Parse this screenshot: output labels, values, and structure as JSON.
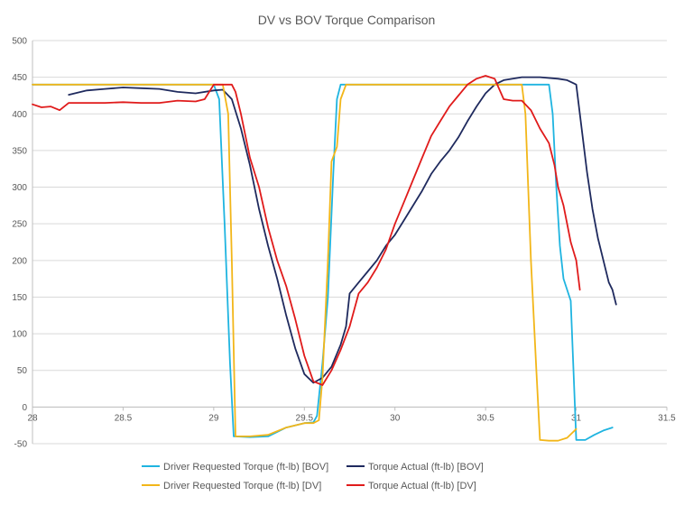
{
  "chart_data": {
    "type": "line",
    "title": "DV vs BOV Torque Comparison",
    "xlabel": "",
    "ylabel": "",
    "xlim": [
      28,
      31.5
    ],
    "ylim": [
      -50,
      500
    ],
    "x_ticks": [
      28,
      28.5,
      29,
      29.5,
      30,
      30.5,
      31,
      31.5
    ],
    "x_tick_labels": [
      "28",
      "28.5",
      "29",
      "29.5",
      "30",
      "30.5",
      "31",
      "31.5"
    ],
    "y_ticks": [
      -50,
      0,
      50,
      100,
      150,
      200,
      250,
      300,
      350,
      400,
      450,
      500
    ],
    "y_tick_labels": [
      "-50",
      "0",
      "50",
      "100",
      "150",
      "200",
      "250",
      "300",
      "350",
      "400",
      "450",
      "500"
    ],
    "grid": true,
    "legend_position": "bottom",
    "series": [
      {
        "name": "Driver Requested Torque  (ft-lb) [BOV]",
        "color": "#1fb4e0",
        "points": [
          [
            28.0,
            440
          ],
          [
            29.0,
            440
          ],
          [
            29.03,
            420
          ],
          [
            29.06,
            250
          ],
          [
            29.09,
            60
          ],
          [
            29.11,
            -40
          ],
          [
            29.2,
            -41
          ],
          [
            29.3,
            -40
          ],
          [
            29.4,
            -28
          ],
          [
            29.5,
            -22
          ],
          [
            29.55,
            -21
          ],
          [
            29.57,
            -12
          ],
          [
            29.6,
            60
          ],
          [
            29.63,
            150
          ],
          [
            29.66,
            320
          ],
          [
            29.68,
            420
          ],
          [
            29.7,
            440
          ],
          [
            29.8,
            440
          ],
          [
            30.0,
            440
          ],
          [
            30.5,
            440
          ],
          [
            30.85,
            440
          ],
          [
            30.87,
            400
          ],
          [
            30.89,
            300
          ],
          [
            30.91,
            220
          ],
          [
            30.93,
            175
          ],
          [
            30.97,
            145
          ],
          [
            31.0,
            -45
          ],
          [
            31.05,
            -45
          ],
          [
            31.1,
            -38
          ],
          [
            31.15,
            -32
          ],
          [
            31.2,
            -28
          ]
        ]
      },
      {
        "name": "Torque Actual (ft-lb) [BOV]",
        "color": "#1f2a5e",
        "points": [
          [
            28.2,
            426
          ],
          [
            28.3,
            432
          ],
          [
            28.4,
            434
          ],
          [
            28.5,
            436
          ],
          [
            28.6,
            435
          ],
          [
            28.7,
            434
          ],
          [
            28.8,
            430
          ],
          [
            28.9,
            428
          ],
          [
            29.0,
            432
          ],
          [
            29.05,
            433
          ],
          [
            29.1,
            420
          ],
          [
            29.15,
            380
          ],
          [
            29.2,
            330
          ],
          [
            29.25,
            270
          ],
          [
            29.3,
            220
          ],
          [
            29.35,
            175
          ],
          [
            29.4,
            125
          ],
          [
            29.45,
            80
          ],
          [
            29.5,
            45
          ],
          [
            29.55,
            33
          ],
          [
            29.6,
            40
          ],
          [
            29.65,
            55
          ],
          [
            29.7,
            85
          ],
          [
            29.73,
            110
          ],
          [
            29.75,
            155
          ],
          [
            29.8,
            170
          ],
          [
            29.85,
            185
          ],
          [
            29.9,
            200
          ],
          [
            29.95,
            220
          ],
          [
            30.0,
            235
          ],
          [
            30.05,
            255
          ],
          [
            30.1,
            275
          ],
          [
            30.15,
            295
          ],
          [
            30.2,
            318
          ],
          [
            30.25,
            335
          ],
          [
            30.3,
            350
          ],
          [
            30.35,
            368
          ],
          [
            30.4,
            390
          ],
          [
            30.45,
            410
          ],
          [
            30.5,
            428
          ],
          [
            30.55,
            440
          ],
          [
            30.6,
            446
          ],
          [
            30.7,
            450
          ],
          [
            30.8,
            450
          ],
          [
            30.9,
            448
          ],
          [
            30.95,
            446
          ],
          [
            31.0,
            440
          ],
          [
            31.03,
            380
          ],
          [
            31.06,
            320
          ],
          [
            31.09,
            270
          ],
          [
            31.12,
            230
          ],
          [
            31.15,
            200
          ],
          [
            31.18,
            170
          ],
          [
            31.2,
            160
          ],
          [
            31.22,
            140
          ]
        ]
      },
      {
        "name": "Driver Requested Torque  (ft-lb) [DV]",
        "color": "#f2b619",
        "points": [
          [
            28.0,
            440
          ],
          [
            29.05,
            440
          ],
          [
            29.08,
            400
          ],
          [
            29.1,
            200
          ],
          [
            29.12,
            -40
          ],
          [
            29.2,
            -40
          ],
          [
            29.3,
            -38
          ],
          [
            29.4,
            -28
          ],
          [
            29.5,
            -22
          ],
          [
            29.55,
            -22
          ],
          [
            29.58,
            -18
          ],
          [
            29.6,
            40
          ],
          [
            29.63,
            200
          ],
          [
            29.65,
            335
          ],
          [
            29.68,
            355
          ],
          [
            29.7,
            420
          ],
          [
            29.73,
            440
          ],
          [
            29.8,
            440
          ],
          [
            30.0,
            440
          ],
          [
            30.5,
            440
          ],
          [
            30.7,
            440
          ],
          [
            30.72,
            400
          ],
          [
            30.75,
            200
          ],
          [
            30.78,
            50
          ],
          [
            30.8,
            -45
          ],
          [
            30.85,
            -46
          ],
          [
            30.9,
            -46
          ],
          [
            30.95,
            -42
          ],
          [
            31.0,
            -30
          ]
        ]
      },
      {
        "name": "Torque Actual (ft-lb) [DV]",
        "color": "#e01b1b",
        "points": [
          [
            28.0,
            413
          ],
          [
            28.05,
            409
          ],
          [
            28.1,
            410
          ],
          [
            28.15,
            405
          ],
          [
            28.2,
            415
          ],
          [
            28.3,
            415
          ],
          [
            28.4,
            415
          ],
          [
            28.5,
            416
          ],
          [
            28.6,
            415
          ],
          [
            28.7,
            415
          ],
          [
            28.8,
            418
          ],
          [
            28.9,
            417
          ],
          [
            28.95,
            420
          ],
          [
            29.0,
            440
          ],
          [
            29.05,
            440
          ],
          [
            29.1,
            440
          ],
          [
            29.12,
            430
          ],
          [
            29.15,
            400
          ],
          [
            29.2,
            340
          ],
          [
            29.25,
            300
          ],
          [
            29.3,
            245
          ],
          [
            29.35,
            200
          ],
          [
            29.4,
            165
          ],
          [
            29.45,
            120
          ],
          [
            29.5,
            70
          ],
          [
            29.55,
            35
          ],
          [
            29.6,
            30
          ],
          [
            29.65,
            50
          ],
          [
            29.7,
            78
          ],
          [
            29.75,
            110
          ],
          [
            29.8,
            155
          ],
          [
            29.85,
            170
          ],
          [
            29.9,
            190
          ],
          [
            29.95,
            215
          ],
          [
            30.0,
            250
          ],
          [
            30.05,
            280
          ],
          [
            30.1,
            310
          ],
          [
            30.15,
            340
          ],
          [
            30.2,
            370
          ],
          [
            30.25,
            390
          ],
          [
            30.3,
            410
          ],
          [
            30.35,
            425
          ],
          [
            30.4,
            440
          ],
          [
            30.45,
            448
          ],
          [
            30.5,
            452
          ],
          [
            30.55,
            448
          ],
          [
            30.6,
            420
          ],
          [
            30.65,
            418
          ],
          [
            30.7,
            418
          ],
          [
            30.75,
            405
          ],
          [
            30.8,
            380
          ],
          [
            30.85,
            360
          ],
          [
            30.88,
            330
          ],
          [
            30.9,
            300
          ],
          [
            30.93,
            275
          ],
          [
            30.95,
            250
          ],
          [
            30.97,
            225
          ],
          [
            31.0,
            200
          ],
          [
            31.02,
            160
          ]
        ]
      }
    ]
  }
}
